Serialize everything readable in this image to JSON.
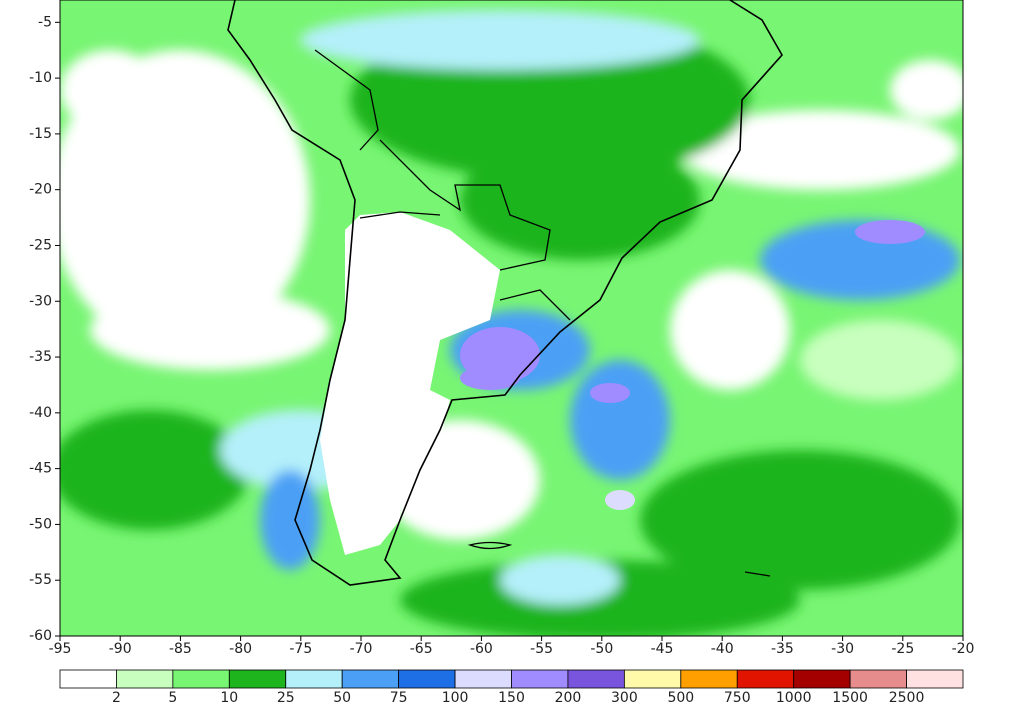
{
  "map": {
    "xlim": [
      -95,
      -20
    ],
    "ylim": [
      -60,
      -3
    ],
    "xticks": [
      -95,
      -90,
      -85,
      -80,
      -75,
      -70,
      -65,
      -60,
      -55,
      -50,
      -45,
      -40,
      -35,
      -30,
      -25,
      -20
    ],
    "yticks": [
      -5,
      -10,
      -15,
      -20,
      -25,
      -30,
      -35,
      -40,
      -45,
      -50,
      -55,
      -60
    ],
    "colorbar": {
      "colors": [
        "#ffffff",
        "#c8ffbe",
        "#78f573",
        "#1eb41e",
        "#b4f0fa",
        "#4ba0f5",
        "#1e6ee6",
        "#dcdcff",
        "#a08cff",
        "#7855dc",
        "#fffaaa",
        "#ffa000",
        "#e11400",
        "#a50000",
        "#e68c8c",
        "#ffe1e1"
      ],
      "labels": [
        2,
        5,
        10,
        25,
        50,
        75,
        100,
        150,
        200,
        300,
        500,
        750,
        1000,
        1500,
        2500
      ]
    }
  }
}
